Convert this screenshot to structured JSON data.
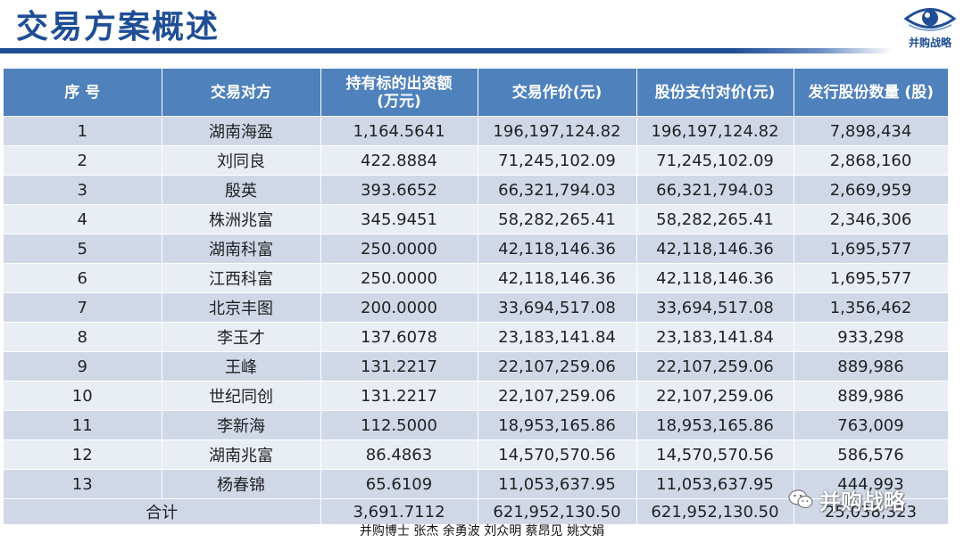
{
  "page": {
    "title": "交易方案概述",
    "logo_text": "并购战略",
    "watermark": "并购战略",
    "footer": "并购博士 张杰  余勇波  刘众明  蔡昂见  姚文娟"
  },
  "table": {
    "headers": [
      "序 号",
      "交易对方",
      "持有标的出资额\n(万元)",
      "交易作价(元)",
      "股份支付对价(元)",
      "发行股份数量 (股)"
    ],
    "rows": [
      [
        "1",
        "湖南海盈",
        "1,164.5641",
        "196,197,124.82",
        "196,197,124.82",
        "7,898,434"
      ],
      [
        "2",
        "刘同良",
        "422.8884",
        "71,245,102.09",
        "71,245,102.09",
        "2,868,160"
      ],
      [
        "3",
        "殷英",
        "393.6652",
        "66,321,794.03",
        "66,321,794.03",
        "2,669,959"
      ],
      [
        "4",
        "株洲兆富",
        "345.9451",
        "58,282,265.41",
        "58,282,265.41",
        "2,346,306"
      ],
      [
        "5",
        "湖南科富",
        "250.0000",
        "42,118,146.36",
        "42,118,146.36",
        "1,695,577"
      ],
      [
        "6",
        "江西科富",
        "250.0000",
        "42,118,146.36",
        "42,118,146.36",
        "1,695,577"
      ],
      [
        "7",
        "北京丰图",
        "200.0000",
        "33,694,517.08",
        "33,694,517.08",
        "1,356,462"
      ],
      [
        "8",
        "李玉才",
        "137.6078",
        "23,183,141.84",
        "23,183,141.84",
        "933,298"
      ],
      [
        "9",
        "王峰",
        "131.2217",
        "22,107,259.06",
        "22,107,259.06",
        "889,986"
      ],
      [
        "10",
        "世纪同创",
        "131.2217",
        "22,107,259.06",
        "22,107,259.06",
        "889,986"
      ],
      [
        "11",
        "李新海",
        "112.5000",
        "18,953,165.86",
        "18,953,165.86",
        "763,009"
      ],
      [
        "12",
        "湖南兆富",
        "86.4863",
        "14,570,570.56",
        "14,570,570.56",
        "586,576"
      ],
      [
        "13",
        "杨春锦",
        "65.6109",
        "11,053,637.95",
        "11,053,637.95",
        "444,993"
      ]
    ],
    "total": [
      "合计",
      "3,691.7112",
      "621,952,130.50",
      "621,952,130.50",
      "25,038,323"
    ]
  }
}
